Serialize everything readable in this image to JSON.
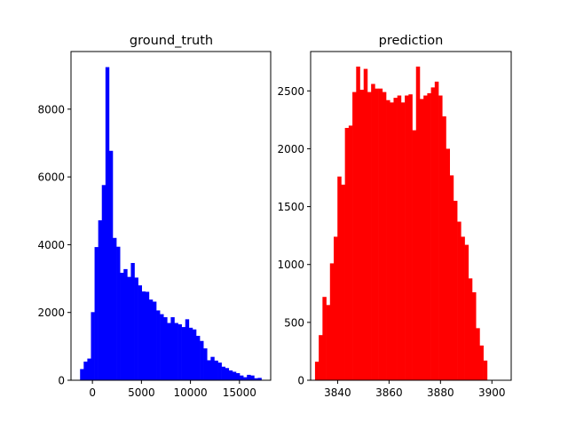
{
  "chart_data": [
    {
      "type": "bar",
      "title": "ground_truth",
      "xlabel": "",
      "ylabel": "",
      "color": "#0000ff",
      "xlim": [
        -2185,
        18185
      ],
      "ylim": [
        0,
        9700
      ],
      "xticks": [
        0,
        5000,
        10000,
        15000
      ],
      "xtick_labels": [
        "0",
        "5000",
        "10000",
        "15000"
      ],
      "yticks": [
        0,
        2000,
        4000,
        6000,
        8000
      ],
      "ytick_labels": [
        "0",
        "2000",
        "4000",
        "6000",
        "8000"
      ],
      "grid": false,
      "bin_start": -1260,
      "bin_width": 370,
      "values": [
        330,
        550,
        640,
        2010,
        3930,
        4720,
        5760,
        9240,
        6770,
        4200,
        3940,
        3170,
        3280,
        3050,
        3460,
        3030,
        2800,
        2620,
        2610,
        2380,
        2320,
        2060,
        1950,
        1860,
        1690,
        1860,
        1690,
        1650,
        1570,
        1800,
        1550,
        1500,
        1310,
        1160,
        940,
        590,
        690,
        580,
        520,
        400,
        360,
        290,
        250,
        210,
        140,
        90,
        160,
        140,
        60,
        70
      ]
    },
    {
      "type": "bar",
      "title": "prediction",
      "xlabel": "",
      "ylabel": "",
      "color": "#ff0000",
      "xlim": [
        3829.5,
        3907.5
      ],
      "ylim": [
        0,
        2840
      ],
      "xticks": [
        3840,
        3860,
        3880,
        3900
      ],
      "xtick_labels": [
        "3840",
        "3860",
        "3880",
        "3900"
      ],
      "yticks": [
        0,
        500,
        1000,
        1500,
        2000,
        2500
      ],
      "ytick_labels": [
        "0",
        "500",
        "1000",
        "1500",
        "2000",
        "2500"
      ],
      "grid": false,
      "bin_start": 3831.2,
      "bin_width": 1.455,
      "values": [
        160,
        390,
        720,
        650,
        1010,
        1240,
        1760,
        1690,
        2180,
        2200,
        2490,
        2710,
        2510,
        2690,
        2490,
        2560,
        2520,
        2520,
        2490,
        2420,
        2400,
        2440,
        2460,
        2400,
        2460,
        2470,
        2160,
        2710,
        2430,
        2460,
        2480,
        2530,
        2580,
        2460,
        2280,
        2000,
        1770,
        1550,
        1370,
        1240,
        1170,
        880,
        760,
        450,
        300,
        170
      ]
    }
  ]
}
